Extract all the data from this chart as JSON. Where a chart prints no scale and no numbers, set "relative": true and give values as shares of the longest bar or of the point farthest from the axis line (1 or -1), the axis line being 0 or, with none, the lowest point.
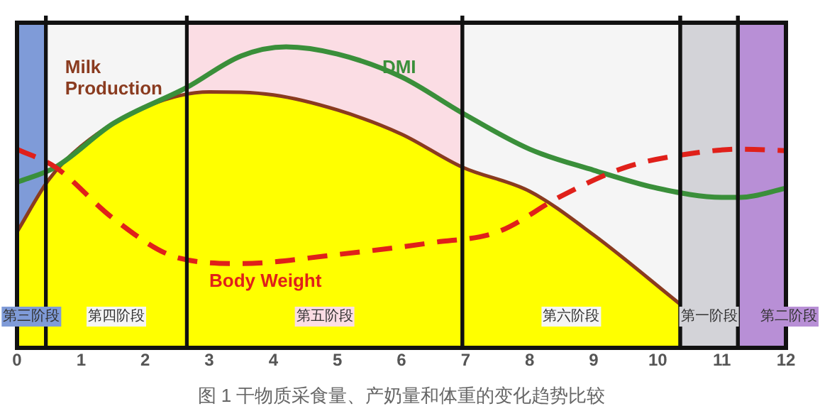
{
  "chart_data": {
    "type": "line",
    "title": "图 1 干物质采食量、产奶量和体重的变化趋势比较",
    "relative": true,
    "legend": false,
    "marker": "none",
    "xlim": [
      0,
      12
    ],
    "xticks": [
      0,
      1,
      2,
      3,
      4,
      5,
      6,
      7,
      8,
      9,
      10,
      11,
      12
    ],
    "series": [
      {
        "name": "Milk Production",
        "type": "area",
        "color": "#8a3b1f",
        "line_style": "solid",
        "x": [
          0,
          0.5,
          1,
          2,
          3,
          4,
          5,
          6,
          6.95,
          8,
          9,
          10.35
        ],
        "values": [
          0.385,
          0.56,
          0.67,
          0.8,
          0.85,
          0.84,
          0.79,
          0.71,
          0.6,
          0.52,
          0.375,
          0.145
        ]
      },
      {
        "name": "DMI",
        "color": "#3a8f3a",
        "line_style": "solid",
        "x": [
          0,
          0.6,
          1.5,
          2.65,
          3.5,
          4.2,
          5,
          6,
          6.95,
          8,
          9,
          10,
          11,
          11.3,
          12
        ],
        "values": [
          0.55,
          0.6,
          0.745,
          0.865,
          0.97,
          1,
          0.976,
          0.9,
          0.78,
          0.66,
          0.59,
          0.53,
          0.5,
          0.5,
          0.53
        ]
      },
      {
        "name": "Body Weight",
        "color": "#e0201a",
        "line_style": "dashed",
        "x": [
          0,
          0.6,
          1.5,
          2.5,
          3.5,
          5,
          6.5,
          7.5,
          8.5,
          9.5,
          10.5,
          11.3,
          12
        ],
        "values": [
          0.66,
          0.6,
          0.43,
          0.3,
          0.28,
          0.31,
          0.35,
          0.385,
          0.505,
          0.6,
          0.645,
          0.66,
          0.655
        ]
      }
    ],
    "bands": [
      {
        "axis": "x",
        "from": 0,
        "to": 0.45,
        "label": "第三阶段",
        "color": "#7f9bd8"
      },
      {
        "axis": "x",
        "from": 0.45,
        "to": 2.65,
        "label": "第四阶段",
        "color": "#f5f5f5"
      },
      {
        "axis": "x",
        "from": 2.65,
        "to": 6.95,
        "label": "第五阶段",
        "color": "#fbdde4"
      },
      {
        "axis": "x",
        "from": 6.95,
        "to": 10.35,
        "label": "第六阶段",
        "color": "#f5f5f5"
      },
      {
        "axis": "x",
        "from": 10.35,
        "to": 11.25,
        "label": "第一阶段",
        "color": "#d3d3d8"
      },
      {
        "axis": "x",
        "from": 11.25,
        "to": 12,
        "label": "第二阶段",
        "color": "#b88fd6"
      }
    ]
  }
}
